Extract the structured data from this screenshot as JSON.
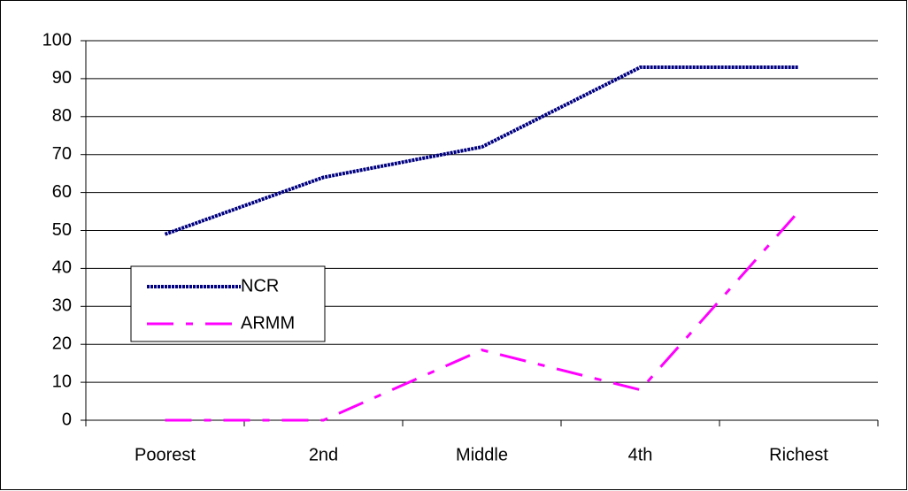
{
  "chart_data": {
    "type": "line",
    "categories": [
      "Poorest",
      "2nd",
      "Middle",
      "4th",
      "Richest"
    ],
    "series": [
      {
        "name": "NCR",
        "color": "#000080",
        "values": [
          49,
          64,
          72,
          93,
          93
        ]
      },
      {
        "name": "ARMM",
        "color": "#ff00ff",
        "values": [
          0,
          0,
          18.5,
          8,
          55
        ]
      }
    ],
    "ylim": [
      0,
      100
    ],
    "yticks": [
      0,
      10,
      20,
      30,
      40,
      50,
      60,
      70,
      80,
      90,
      100
    ],
    "grid": true,
    "legend": "left"
  }
}
